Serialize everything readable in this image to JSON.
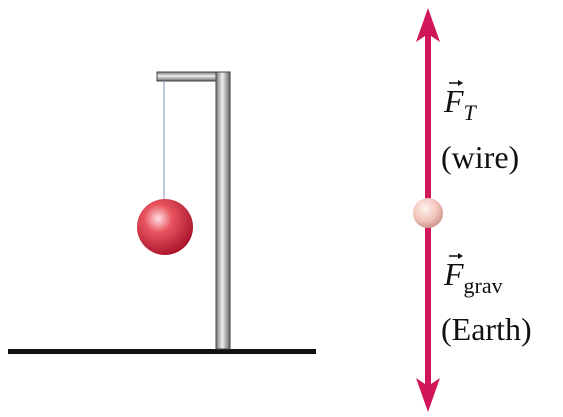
{
  "forces": [
    {
      "symbol": "F",
      "subscript": "T",
      "source": "(wire)"
    },
    {
      "symbol": "F",
      "subscript": "grav",
      "source": "(Earth)"
    }
  ]
}
